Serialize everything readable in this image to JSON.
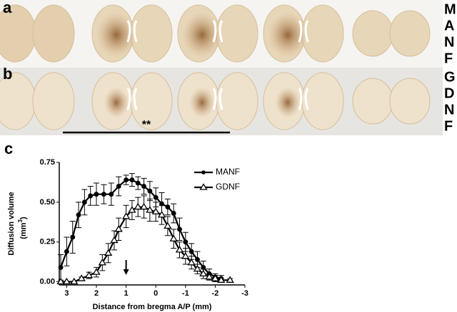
{
  "panels": {
    "a": "a",
    "b": "b",
    "c": "c"
  },
  "side_labels": {
    "top": [
      "M",
      "A",
      "N",
      "F"
    ],
    "bottom": [
      "G",
      "D",
      "N",
      "F"
    ]
  },
  "chart_data": {
    "type": "line",
    "xlabel": "Distance from bregma A/P (mm)",
    "ylabel": {
      "text": "Diffusion volume",
      "unit_open": "(mm",
      "exponent": "3",
      "unit_close": ")"
    },
    "annotation": "**",
    "xlim": [
      3.25,
      -3
    ],
    "xticks": [
      3,
      2,
      1,
      0,
      -1,
      -2,
      -3
    ],
    "ylim": [
      -0.02,
      0.75
    ],
    "yticks": [
      {
        "value": 0,
        "label": "0.00"
      },
      {
        "value": 0.25,
        "label": "0.25"
      },
      {
        "value": 0.5,
        "label": "0.50"
      },
      {
        "value": 0.75,
        "label": "0.75"
      }
    ],
    "legend": "upper right",
    "series": [
      {
        "name": "MANF",
        "color": "#000000",
        "marker": "circle",
        "x": [
          3.2,
          3.0,
          2.8,
          2.6,
          2.4,
          2.2,
          2.0,
          1.75,
          1.5,
          1.25,
          1.0,
          0.8,
          0.6,
          0.4,
          0.2,
          0,
          -0.2,
          -0.4,
          -0.6,
          -0.8,
          -1.0,
          -1.2,
          -1.4,
          -1.6,
          -1.8,
          -2.0,
          -2.2
        ],
        "values": [
          0.09,
          0.19,
          0.28,
          0.42,
          0.5,
          0.54,
          0.55,
          0.55,
          0.55,
          0.6,
          0.64,
          0.64,
          0.62,
          0.6,
          0.57,
          0.53,
          0.49,
          0.47,
          0.43,
          0.33,
          0.25,
          0.19,
          0.14,
          0.09,
          0.05,
          0.03,
          0.02
        ],
        "errors": [
          0.08,
          0.09,
          0.1,
          0.08,
          0.08,
          0.06,
          0.07,
          0.06,
          0.07,
          0.06,
          0.03,
          0.04,
          0.04,
          0.05,
          0.06,
          0.06,
          0.07,
          0.05,
          0.06,
          0.07,
          0.06,
          0.05,
          0.05,
          0.04,
          0.03,
          0.02,
          0.02
        ]
      },
      {
        "name": "GDNF",
        "color": "#000000",
        "marker": "triangle",
        "x": [
          3.2,
          3.0,
          2.75,
          2.5,
          2.25,
          2.0,
          1.8,
          1.6,
          1.4,
          1.25,
          1.0,
          0.8,
          0.6,
          0.4,
          0.2,
          0,
          -0.2,
          -0.4,
          -0.6,
          -0.8,
          -1.0,
          -1.2,
          -1.4,
          -1.6,
          -1.8,
          -2.0,
          -2.2,
          -2.5
        ],
        "values": [
          0,
          0,
          0,
          0.02,
          0.04,
          0.06,
          0.12,
          0.18,
          0.26,
          0.33,
          0.41,
          0.45,
          0.47,
          0.47,
          0.45,
          0.44,
          0.42,
          0.35,
          0.27,
          0.2,
          0.16,
          0.12,
          0.08,
          0.05,
          0.03,
          0.02,
          0.01,
          0.01
        ],
        "errors": [
          0,
          0,
          0,
          0.01,
          0.02,
          0.03,
          0.05,
          0.06,
          0.06,
          0.07,
          0.07,
          0.06,
          0.06,
          0.07,
          0.07,
          0.06,
          0.06,
          0.06,
          0.06,
          0.05,
          0.05,
          0.04,
          0.03,
          0.03,
          0.02,
          0.02,
          0.01,
          0.01
        ]
      }
    ]
  }
}
